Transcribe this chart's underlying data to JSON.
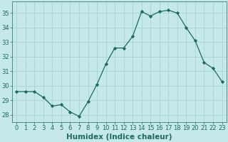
{
  "x": [
    0,
    1,
    2,
    3,
    4,
    5,
    6,
    7,
    8,
    9,
    10,
    11,
    12,
    13,
    14,
    15,
    16,
    17,
    18,
    19,
    20,
    21,
    22,
    23
  ],
  "y": [
    29.6,
    29.6,
    29.6,
    29.2,
    28.6,
    28.7,
    28.2,
    27.9,
    28.9,
    30.1,
    31.5,
    32.6,
    32.6,
    33.4,
    35.1,
    34.8,
    35.1,
    35.2,
    35.0,
    34.0,
    33.1,
    31.6,
    31.2,
    30.3
  ],
  "line_color": "#1a6b5e",
  "marker": "D",
  "marker_size": 2.2,
  "bg_color": "#c5e8e8",
  "grid_color": "#a8d4d4",
  "xlabel": "Humidex (Indice chaleur)",
  "ylim": [
    27.5,
    35.8
  ],
  "xlim": [
    -0.5,
    23.5
  ],
  "yticks": [
    28,
    29,
    30,
    31,
    32,
    33,
    34,
    35
  ],
  "xticks": [
    0,
    1,
    2,
    3,
    4,
    5,
    6,
    7,
    8,
    9,
    10,
    11,
    12,
    13,
    14,
    15,
    16,
    17,
    18,
    19,
    20,
    21,
    22,
    23
  ],
  "tick_color": "#1a6b5e",
  "label_color": "#1a6b5e",
  "xlabel_fontsize": 7.5,
  "tick_fontsize": 6.0,
  "linewidth": 0.9
}
